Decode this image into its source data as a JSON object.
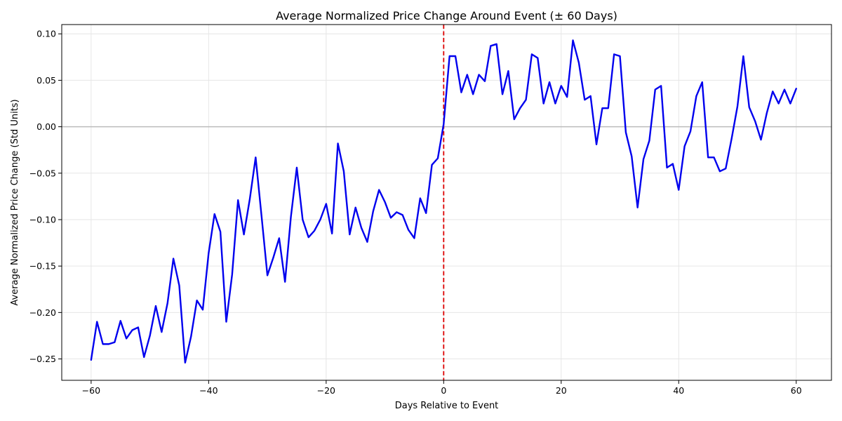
{
  "chart_data": {
    "type": "line",
    "title": "Average Normalized Price Change Around Event (± 60 Days)",
    "xlabel": "Days Relative to Event",
    "ylabel": "Average Normalized Price Change (Std Units)",
    "xlim": [
      -65,
      66
    ],
    "ylim": [
      -0.273,
      0.11
    ],
    "xticks": [
      -60,
      -40,
      -20,
      0,
      20,
      40,
      60
    ],
    "xtick_labels": [
      "−60",
      "−40",
      "−20",
      "0",
      "20",
      "40",
      "60"
    ],
    "yticks": [
      -0.25,
      -0.2,
      -0.15,
      -0.1,
      -0.05,
      0.0,
      0.05,
      0.1
    ],
    "ytick_labels": [
      "−0.25",
      "−0.20",
      "−0.15",
      "−0.10",
      "−0.05",
      "0.00",
      "0.05",
      "0.10"
    ],
    "grid": true,
    "colors": {
      "series": "#0000ee",
      "event_line": "#dd0000",
      "zero_line": "#bbbbbb",
      "grid": "#e6e6e6"
    },
    "event_line_x": 0,
    "zero_line_y": 0,
    "series": [
      {
        "x": [
          -60,
          -59,
          -58,
          -57,
          -56,
          -55,
          -54,
          -53,
          -52,
          -51,
          -50,
          -49,
          -48,
          -47,
          -46,
          -45,
          -44,
          -43,
          -42,
          -41,
          -40,
          -39,
          -38,
          -37,
          -36,
          -35,
          -34,
          -33,
          -32,
          -31,
          -30,
          -29,
          -28,
          -27,
          -26,
          -25,
          -24,
          -23,
          -22,
          -21,
          -20,
          -19,
          -18,
          -17,
          -16,
          -15,
          -14,
          -13,
          -12,
          -11,
          -10,
          -9,
          -8,
          -7,
          -6,
          -5,
          -4,
          -3,
          -2,
          -1,
          0,
          1,
          2,
          3,
          4,
          5,
          6,
          7,
          8,
          9,
          10,
          11,
          12,
          13,
          14,
          15,
          16,
          17,
          18,
          19,
          20,
          21,
          22,
          23,
          24,
          25,
          26,
          27,
          28,
          29,
          30,
          31,
          32,
          33,
          34,
          35,
          36,
          37,
          38,
          39,
          40,
          41,
          42,
          43,
          44,
          45,
          46,
          47,
          48,
          49,
          50,
          51,
          52,
          53,
          54,
          55,
          56,
          57,
          58,
          59,
          60
        ],
        "values": [
          -0.251,
          -0.21,
          -0.234,
          -0.234,
          -0.232,
          -0.209,
          -0.228,
          -0.219,
          -0.216,
          -0.248,
          -0.225,
          -0.193,
          -0.221,
          -0.19,
          -0.142,
          -0.171,
          -0.254,
          -0.226,
          -0.187,
          -0.197,
          -0.136,
          -0.094,
          -0.113,
          -0.21,
          -0.159,
          -0.079,
          -0.116,
          -0.078,
          -0.033,
          -0.096,
          -0.16,
          -0.141,
          -0.12,
          -0.167,
          -0.097,
          -0.044,
          -0.1,
          -0.119,
          -0.112,
          -0.1,
          -0.083,
          -0.115,
          -0.018,
          -0.048,
          -0.116,
          -0.087,
          -0.109,
          -0.124,
          -0.091,
          -0.068,
          -0.081,
          -0.098,
          -0.092,
          -0.095,
          -0.111,
          -0.12,
          -0.077,
          -0.093,
          -0.041,
          -0.034,
          0.003,
          0.076,
          0.076,
          0.037,
          0.056,
          0.035,
          0.056,
          0.049,
          0.087,
          0.089,
          0.035,
          0.06,
          0.008,
          0.02,
          0.029,
          0.078,
          0.074,
          0.025,
          0.048,
          0.025,
          0.044,
          0.032,
          0.093,
          0.069,
          0.029,
          0.033,
          -0.019,
          0.02,
          0.02,
          0.078,
          0.076,
          -0.006,
          -0.032,
          -0.087,
          -0.035,
          -0.015,
          0.04,
          0.044,
          -0.044,
          -0.04,
          -0.068,
          -0.021,
          -0.005,
          0.033,
          0.048,
          -0.033,
          -0.033,
          -0.048,
          -0.045,
          -0.013,
          0.022,
          0.076,
          0.021,
          0.006,
          -0.014,
          0.015,
          0.038,
          0.025,
          0.04,
          0.025,
          0.041
        ]
      }
    ]
  }
}
